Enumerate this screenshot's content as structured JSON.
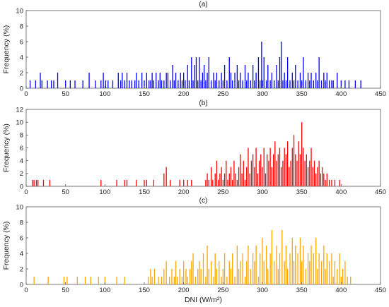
{
  "chart_data": [
    {
      "type": "bar",
      "title": "(a)",
      "xlabel": "",
      "ylabel": "Frequency (%)",
      "xlim": [
        0,
        450
      ],
      "ylim": [
        0,
        10
      ],
      "xticks": [
        0,
        50,
        100,
        150,
        200,
        250,
        300,
        350,
        400,
        450
      ],
      "yticks": [
        0,
        2,
        4,
        6,
        8,
        10
      ],
      "grid": false,
      "color": "#0000FF",
      "x": [
        5,
        12,
        18,
        20,
        27,
        32,
        35,
        40,
        50,
        56,
        62,
        72,
        80,
        88,
        95,
        98,
        101,
        104,
        110,
        117,
        120,
        122,
        125,
        128,
        131,
        134,
        138,
        140,
        143,
        147,
        150,
        153,
        156,
        158,
        160,
        162,
        165,
        168,
        170,
        172,
        175,
        178,
        180,
        183,
        186,
        188,
        190,
        193,
        196,
        198,
        200,
        202,
        205,
        207,
        210,
        212,
        214,
        216,
        218,
        220,
        222,
        224,
        226,
        228,
        230,
        232,
        235,
        238,
        240,
        242,
        245,
        248,
        250,
        252,
        255,
        258,
        260,
        262,
        265,
        268,
        270,
        272,
        275,
        278,
        280,
        282,
        285,
        288,
        290,
        292,
        295,
        297,
        299,
        300,
        302,
        305,
        307,
        310,
        312,
        315,
        318,
        320,
        322,
        324,
        326,
        328,
        330,
        332,
        335,
        338,
        340,
        342,
        345,
        348,
        350,
        352,
        355,
        358,
        360,
        362,
        365,
        368,
        370,
        372,
        375,
        378,
        380,
        382,
        385,
        388,
        390,
        395,
        400,
        405,
        410,
        418,
        425
      ],
      "values": [
        1,
        1,
        2,
        1,
        1,
        1,
        1,
        2,
        1,
        1,
        1,
        1,
        2,
        1,
        1,
        2,
        1,
        1,
        1,
        2,
        1,
        2,
        1,
        2,
        1,
        1,
        1,
        2,
        1,
        2,
        1,
        2,
        1,
        1,
        2,
        1,
        2,
        1,
        2,
        1,
        1,
        2,
        2,
        1,
        3,
        1,
        2,
        1,
        2,
        1,
        2,
        1,
        3,
        1,
        4,
        1,
        3,
        4,
        1,
        4,
        1,
        2,
        3,
        1,
        2,
        4,
        1,
        2,
        1,
        2,
        1,
        2,
        1,
        3,
        1,
        4,
        2,
        1,
        2,
        3,
        1,
        2,
        1,
        3,
        1,
        2,
        1,
        3,
        1,
        2,
        4,
        1,
        6,
        1,
        4,
        1,
        3,
        1,
        2,
        1,
        3,
        1,
        4,
        6,
        1,
        2,
        1,
        4,
        1,
        2,
        1,
        3,
        1,
        2,
        1,
        4,
        1,
        2,
        1,
        2,
        1,
        2,
        1,
        4,
        1,
        2,
        1,
        2,
        1,
        1,
        1,
        2,
        1,
        1,
        1,
        1,
        1
      ]
    },
    {
      "type": "bar",
      "title": "(b)",
      "xlabel": "",
      "ylabel": "Frequency (%)",
      "xlim": [
        0,
        450
      ],
      "ylim": [
        0,
        12
      ],
      "xticks": [
        0,
        50,
        100,
        150,
        200,
        250,
        300,
        350,
        400,
        450
      ],
      "yticks": [
        0,
        2,
        4,
        6,
        8,
        10,
        12
      ],
      "grid": false,
      "color": "#FF0000",
      "x": [
        8,
        10,
        13,
        15,
        22,
        30,
        95,
        115,
        125,
        128,
        140,
        150,
        153,
        162,
        175,
        178,
        183,
        195,
        200,
        205,
        210,
        228,
        230,
        232,
        235,
        237,
        240,
        242,
        244,
        246,
        248,
        250,
        252,
        254,
        256,
        258,
        260,
        262,
        264,
        266,
        268,
        270,
        272,
        274,
        276,
        278,
        280,
        282,
        284,
        286,
        288,
        290,
        292,
        294,
        296,
        298,
        300,
        302,
        304,
        306,
        308,
        310,
        312,
        314,
        316,
        318,
        320,
        322,
        324,
        326,
        328,
        330,
        332,
        334,
        336,
        338,
        340,
        342,
        344,
        346,
        348,
        350,
        352,
        354,
        356,
        358,
        360,
        362,
        364,
        366,
        368,
        370,
        372,
        374,
        376,
        378,
        380,
        382,
        385,
        388,
        392,
        398
      ],
      "values": [
        1,
        1,
        1,
        1,
        1,
        1,
        1,
        1,
        1,
        1,
        1,
        1,
        1,
        1,
        2,
        3,
        1,
        1,
        1,
        1,
        1,
        1,
        2,
        1,
        3,
        1,
        2,
        4,
        1,
        2,
        3,
        1,
        2,
        4,
        1,
        2,
        3,
        1,
        4,
        2,
        1,
        3,
        5,
        2,
        4,
        1,
        3,
        6,
        2,
        4,
        5,
        3,
        6,
        2,
        4,
        5,
        3,
        6,
        2,
        5,
        4,
        6,
        3,
        5,
        7,
        4,
        5,
        6,
        3,
        4,
        6,
        5,
        7,
        3,
        4,
        6,
        8,
        5,
        4,
        7,
        5,
        10,
        6,
        4,
        5,
        3,
        4,
        6,
        3,
        4,
        2,
        3,
        4,
        2,
        3,
        2,
        1,
        2,
        1,
        1,
        1,
        1
      ]
    },
    {
      "type": "bar",
      "title": "(c)",
      "xlabel": "DNI (W/m²)",
      "ylabel": "Frequency (%)",
      "xlim": [
        0,
        450
      ],
      "ylim": [
        0,
        10
      ],
      "xticks": [
        0,
        50,
        100,
        150,
        200,
        250,
        300,
        350,
        400,
        450
      ],
      "yticks": [
        0,
        2,
        4,
        6,
        8,
        10
      ],
      "grid": false,
      "color": "#FFA500",
      "x": [
        10,
        28,
        48,
        52,
        65,
        75,
        82,
        92,
        100,
        115,
        125,
        155,
        158,
        160,
        163,
        168,
        172,
        175,
        178,
        182,
        185,
        188,
        190,
        192,
        195,
        198,
        200,
        203,
        205,
        208,
        210,
        212,
        215,
        218,
        220,
        222,
        225,
        228,
        230,
        232,
        235,
        238,
        240,
        242,
        245,
        248,
        250,
        252,
        255,
        258,
        260,
        262,
        265,
        268,
        270,
        272,
        275,
        278,
        280,
        282,
        285,
        288,
        290,
        292,
        295,
        297,
        300,
        302,
        305,
        307,
        310,
        312,
        315,
        318,
        320,
        322,
        325,
        328,
        330,
        332,
        335,
        338,
        340,
        342,
        345,
        348,
        350,
        352,
        355,
        358,
        360,
        362,
        365,
        368,
        370,
        372,
        375,
        378,
        380,
        382,
        385,
        388,
        390,
        392,
        395,
        398,
        400,
        402,
        405,
        408,
        412
      ],
      "values": [
        1,
        1,
        1,
        1,
        1,
        1,
        1,
        1,
        1,
        1,
        1,
        1,
        2,
        1,
        2,
        1,
        1,
        2,
        3,
        1,
        2,
        1,
        3,
        1,
        2,
        1,
        3,
        2,
        1,
        2,
        3,
        4,
        1,
        2,
        3,
        2,
        4,
        1,
        5,
        2,
        3,
        1,
        4,
        2,
        3,
        1,
        2,
        4,
        1,
        3,
        2,
        4,
        1,
        5,
        2,
        3,
        4,
        1,
        3,
        5,
        2,
        4,
        3,
        5,
        1,
        4,
        6,
        3,
        5,
        2,
        4,
        7,
        3,
        5,
        2,
        4,
        7,
        3,
        5,
        2,
        4,
        6,
        3,
        5,
        4,
        6,
        3,
        5,
        2,
        4,
        3,
        5,
        4,
        6,
        2,
        4,
        3,
        5,
        2,
        4,
        3,
        4,
        1,
        3,
        2,
        4,
        1,
        2,
        3,
        1,
        1
      ]
    }
  ]
}
